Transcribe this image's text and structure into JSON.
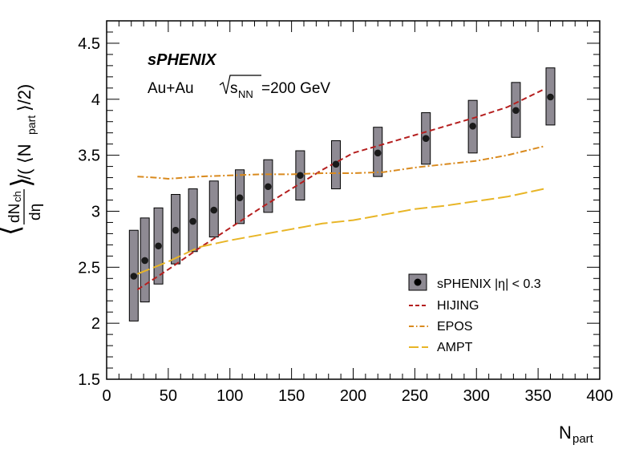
{
  "chart_data": {
    "type": "scatter",
    "title": "",
    "xlabel": "N",
    "xlabel_sub": "part",
    "ylabel_parts": [
      "dN",
      "ch",
      "dη",
      "⟨N",
      "part",
      "⟩/2)"
    ],
    "xlim": [
      0,
      400
    ],
    "ylim": [
      1.5,
      4.7
    ],
    "x_ticks": [
      0,
      50,
      100,
      150,
      200,
      250,
      300,
      350,
      400
    ],
    "y_ticks": [
      1.5,
      2,
      2.5,
      3,
      3.5,
      4,
      4.5
    ],
    "grid": false,
    "legend_position": "bottom-right",
    "annotations": {
      "experiment": "sPHENIX",
      "system": "Au+Au",
      "energy_symbol": "s",
      "energy_sub": "NN",
      "energy_value": "=200 GeV"
    },
    "series": [
      {
        "name": "sPHENIX |η| < 0.3",
        "kind": "points_with_bands",
        "color": "#1a1a1a",
        "band_color": "#8e8a93",
        "points": [
          {
            "x": 22,
            "y": 2.42,
            "lo": 2.02,
            "hi": 2.83
          },
          {
            "x": 31,
            "y": 2.56,
            "lo": 2.19,
            "hi": 2.94
          },
          {
            "x": 42,
            "y": 2.69,
            "lo": 2.35,
            "hi": 3.03
          },
          {
            "x": 56,
            "y": 2.83,
            "lo": 2.53,
            "hi": 3.15
          },
          {
            "x": 70,
            "y": 2.91,
            "lo": 2.64,
            "hi": 3.2
          },
          {
            "x": 87,
            "y": 3.01,
            "lo": 2.77,
            "hi": 3.27
          },
          {
            "x": 108,
            "y": 3.12,
            "lo": 2.89,
            "hi": 3.37
          },
          {
            "x": 131,
            "y": 3.22,
            "lo": 2.99,
            "hi": 3.46
          },
          {
            "x": 157,
            "y": 3.32,
            "lo": 3.1,
            "hi": 3.54
          },
          {
            "x": 186,
            "y": 3.42,
            "lo": 3.2,
            "hi": 3.63
          },
          {
            "x": 220,
            "y": 3.52,
            "lo": 3.31,
            "hi": 3.75
          },
          {
            "x": 259,
            "y": 3.65,
            "lo": 3.42,
            "hi": 3.88
          },
          {
            "x": 297,
            "y": 3.76,
            "lo": 3.52,
            "hi": 3.99
          },
          {
            "x": 332,
            "y": 3.9,
            "lo": 3.66,
            "hi": 4.15
          },
          {
            "x": 360,
            "y": 4.02,
            "lo": 3.77,
            "hi": 4.28
          }
        ]
      },
      {
        "name": "HIJING",
        "kind": "line",
        "color": "#b51f1f",
        "dash": "dashed",
        "points": [
          [
            25,
            2.3
          ],
          [
            50,
            2.48
          ],
          [
            75,
            2.67
          ],
          [
            100,
            2.85
          ],
          [
            125,
            3.03
          ],
          [
            150,
            3.2
          ],
          [
            175,
            3.37
          ],
          [
            200,
            3.52
          ],
          [
            225,
            3.6
          ],
          [
            250,
            3.68
          ],
          [
            275,
            3.76
          ],
          [
            300,
            3.84
          ],
          [
            325,
            3.93
          ],
          [
            355,
            4.09
          ]
        ]
      },
      {
        "name": "EPOS",
        "kind": "line",
        "color": "#d98a1e",
        "dash": "dashdot",
        "points": [
          [
            25,
            3.31
          ],
          [
            40,
            3.3
          ],
          [
            50,
            3.29
          ],
          [
            75,
            3.31
          ],
          [
            100,
            3.32
          ],
          [
            125,
            3.33
          ],
          [
            150,
            3.33
          ],
          [
            175,
            3.34
          ],
          [
            200,
            3.34
          ],
          [
            225,
            3.35
          ],
          [
            250,
            3.39
          ],
          [
            275,
            3.42
          ],
          [
            300,
            3.45
          ],
          [
            325,
            3.5
          ],
          [
            355,
            3.58
          ]
        ]
      },
      {
        "name": "AMPT",
        "kind": "line",
        "color": "#e8b526",
        "dash": "longdash",
        "points": [
          [
            25,
            2.44
          ],
          [
            50,
            2.55
          ],
          [
            75,
            2.68
          ],
          [
            100,
            2.74
          ],
          [
            125,
            2.79
          ],
          [
            150,
            2.84
          ],
          [
            175,
            2.89
          ],
          [
            200,
            2.92
          ],
          [
            225,
            2.97
          ],
          [
            250,
            3.02
          ],
          [
            275,
            3.05
          ],
          [
            300,
            3.09
          ],
          [
            325,
            3.13
          ],
          [
            355,
            3.2
          ]
        ]
      }
    ]
  }
}
